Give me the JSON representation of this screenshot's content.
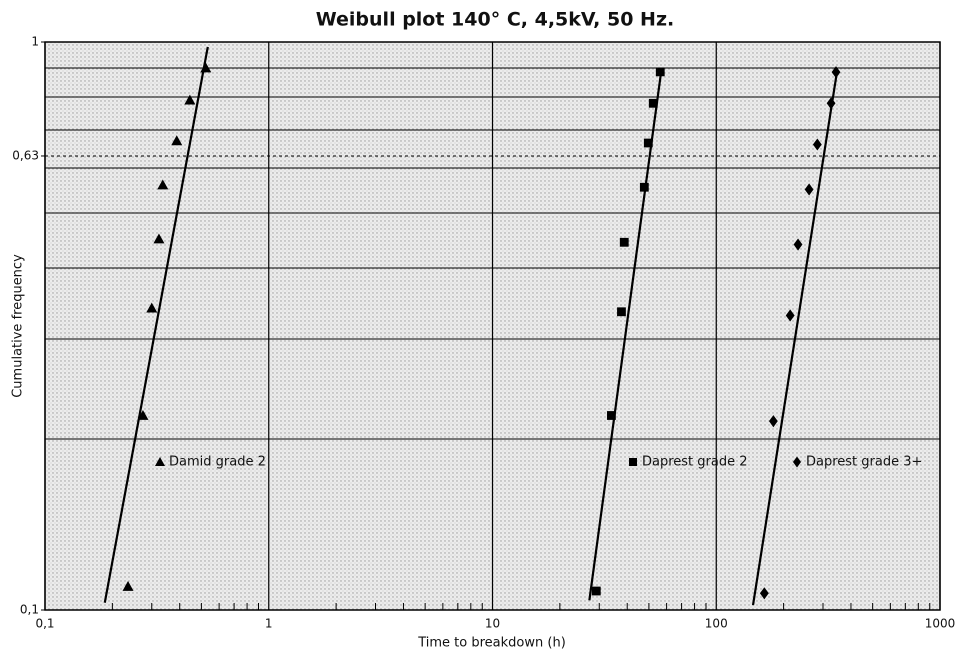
{
  "chart_data": {
    "type": "scatter",
    "title": "Weibull plot 140° C, 4,5kV, 50 Hz.",
    "xlabel": "Time to breakdown (h)",
    "ylabel": "Cumulative frequency",
    "xscale": "log",
    "yscale": "log",
    "xlim": [
      0.1,
      1000
    ],
    "ylim": [
      0.1,
      1
    ],
    "xticks": [
      {
        "value": 0.1,
        "label": "0,1"
      },
      1,
      10,
      100,
      1000
    ],
    "xminor_ticks": [
      0.2,
      0.3,
      0.4,
      0.5,
      0.6,
      0.7,
      0.8,
      0.9,
      2,
      3,
      4,
      5,
      6,
      7,
      8,
      9,
      20,
      30,
      40,
      50,
      60,
      70,
      80,
      90,
      200,
      300,
      400,
      500,
      600,
      700,
      800,
      900
    ],
    "yticks": [
      {
        "value": 0.1,
        "label": "0,1"
      },
      {
        "value": 0.63,
        "label": "0,63"
      },
      1
    ],
    "ygrid": [
      0.2,
      0.3,
      0.4,
      0.5,
      0.6,
      0.7,
      0.8,
      0.9
    ],
    "reference_line": 0.63,
    "series": [
      {
        "name": "Damid grade 2",
        "marker": "triangle",
        "color": "#000000",
        "x": [
          0.235,
          0.274,
          0.3,
          0.323,
          0.336,
          0.388,
          0.444,
          0.523
        ],
        "values": [
          0.11,
          0.22,
          0.34,
          0.45,
          0.56,
          0.67,
          0.79,
          0.9
        ],
        "fit": {
          "x": [
            0.185,
            0.534
          ],
          "values": [
            0.103,
            0.98
          ]
        }
      },
      {
        "name": "Daprest grade 2",
        "marker": "square",
        "color": "#000000",
        "x": [
          29.1,
          34.0,
          37.7,
          38.8,
          47.7,
          49.7,
          52.3,
          56.2
        ],
        "values": [
          0.108,
          0.22,
          0.335,
          0.444,
          0.555,
          0.664,
          0.78,
          0.886
        ],
        "fit": {
          "x": [
            27.1,
            56.8
          ],
          "values": [
            0.104,
            0.89
          ]
        }
      },
      {
        "name": "Daprest grade 3+",
        "marker": "diamond",
        "color": "#000000",
        "x": [
          164,
          180,
          214,
          232,
          260,
          283,
          326,
          343
        ],
        "values": [
          0.107,
          0.215,
          0.33,
          0.44,
          0.55,
          0.66,
          0.78,
          0.885
        ],
        "fit": {
          "x": [
            146,
            347
          ],
          "values": [
            0.102,
            0.89
          ]
        }
      }
    ]
  }
}
